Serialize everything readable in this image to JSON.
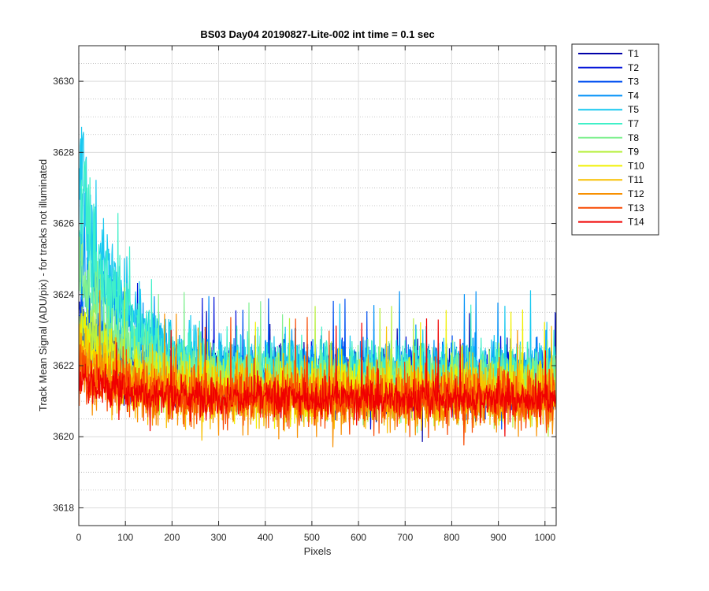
{
  "chart_data": {
    "type": "line",
    "title": "BS03 Day04 20190827-Lite-002 int time = 0.1 sec",
    "xlabel": "Pixels",
    "ylabel": "Track Mean Signal (ADU/pix) - for tracks not illuminated",
    "xlim": [
      0,
      1024
    ],
    "ylim": [
      3617.5,
      3631
    ],
    "x_ticks": [
      0,
      100,
      200,
      300,
      400,
      500,
      600,
      700,
      800,
      900,
      1000
    ],
    "y_ticks": [
      3618,
      3620,
      3622,
      3624,
      3626,
      3628,
      3630
    ],
    "grid": true,
    "minor_grid_y": true,
    "legend_position": "outside-top-right",
    "series": [
      {
        "name": "T1",
        "color": "#0000a8",
        "mean": 3621.6,
        "noise": 0.85,
        "start_excess": 1.2
      },
      {
        "name": "T2",
        "color": "#0010d8",
        "mean": 3621.6,
        "noise": 0.85,
        "start_excess": 1.5
      },
      {
        "name": "T3",
        "color": "#0050f0",
        "mean": 3621.6,
        "noise": 0.85,
        "start_excess": 2.0
      },
      {
        "name": "T4",
        "color": "#0090f8",
        "mean": 3621.8,
        "noise": 0.9,
        "start_excess": 4.0
      },
      {
        "name": "T5",
        "color": "#18c8f0",
        "mean": 3621.8,
        "noise": 0.95,
        "start_excess": 5.5
      },
      {
        "name": "T7",
        "color": "#40f0c8",
        "mean": 3621.8,
        "noise": 0.9,
        "start_excess": 5.0
      },
      {
        "name": "T8",
        "color": "#80f090",
        "mean": 3621.5,
        "noise": 0.85,
        "start_excess": 3.0
      },
      {
        "name": "T9",
        "color": "#b8f040",
        "mean": 3621.4,
        "noise": 0.85,
        "start_excess": 2.0
      },
      {
        "name": "T10",
        "color": "#f0f000",
        "mean": 3621.3,
        "noise": 0.85,
        "start_excess": 1.5
      },
      {
        "name": "T11",
        "color": "#f8c000",
        "mean": 3621.2,
        "noise": 0.85,
        "start_excess": 1.2
      },
      {
        "name": "T12",
        "color": "#f89000",
        "mean": 3621.1,
        "noise": 0.85,
        "start_excess": 1.0
      },
      {
        "name": "T13",
        "color": "#f84800",
        "mean": 3621.1,
        "noise": 0.8,
        "start_excess": 0.8
      },
      {
        "name": "T14",
        "color": "#f00000",
        "mean": 3621.1,
        "noise": 0.55,
        "start_excess": 0.6
      }
    ]
  }
}
